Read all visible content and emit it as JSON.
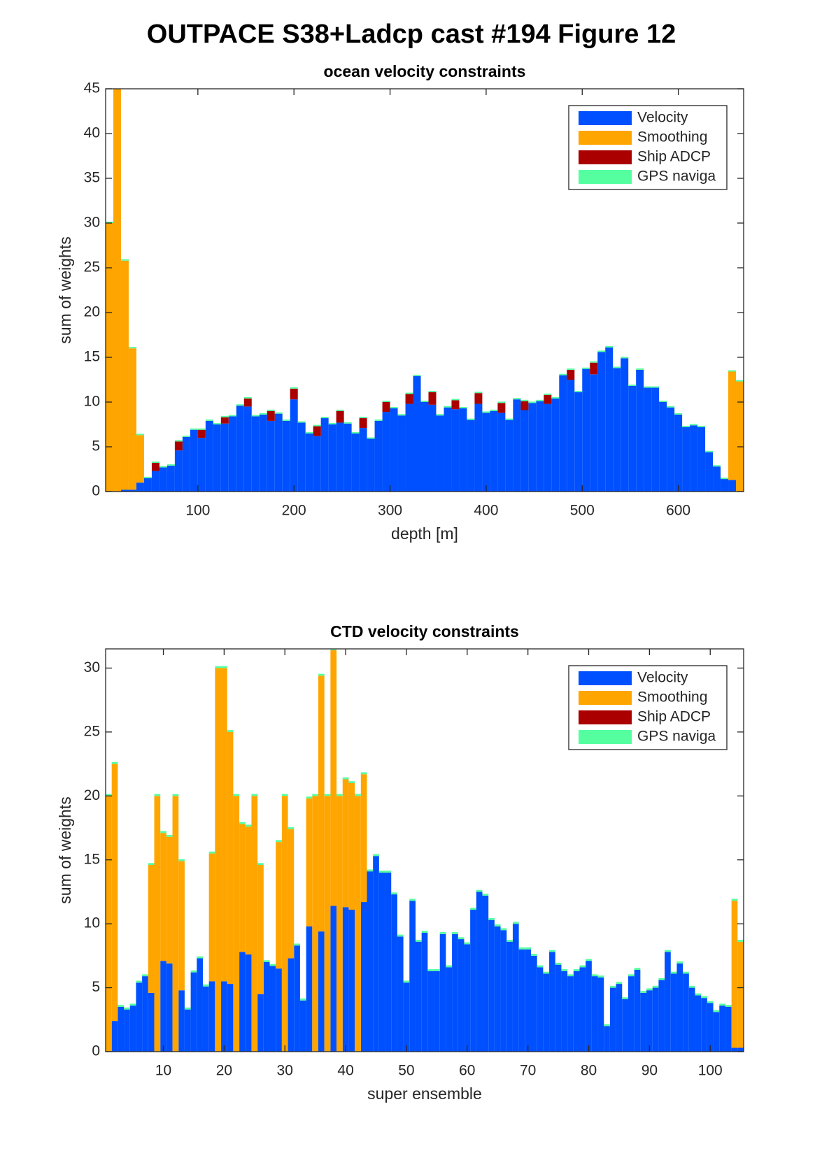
{
  "title": "OUTPACE S38+Ladcp cast #194  Figure 12",
  "chart_data": [
    {
      "type": "bar",
      "stacked": true,
      "title": "ocean velocity constraints",
      "xlabel": "depth [m]",
      "ylabel": "sum of weights",
      "x": [
        8,
        16,
        24,
        32,
        40,
        48,
        56,
        64,
        72,
        80,
        88,
        96,
        104,
        112,
        120,
        128,
        136,
        144,
        152,
        160,
        168,
        176,
        184,
        192,
        200,
        208,
        216,
        224,
        232,
        240,
        248,
        256,
        264,
        272,
        280,
        288,
        296,
        304,
        312,
        320,
        328,
        336,
        344,
        352,
        360,
        368,
        376,
        384,
        392,
        400,
        408,
        416,
        424,
        432,
        440,
        448,
        456,
        464,
        472,
        480,
        488,
        496,
        504,
        512,
        520,
        528,
        536,
        544,
        552,
        560,
        568,
        576,
        584,
        592,
        600,
        608,
        616,
        624,
        632,
        640,
        648,
        656,
        664
      ],
      "series": [
        {
          "name": "Velocity",
          "color": "#0050ff",
          "values": [
            0,
            0,
            0.2,
            0.2,
            1,
            1.5,
            2.3,
            2.7,
            2.9,
            4.6,
            6.1,
            6.9,
            6.0,
            7.9,
            7.5,
            7.6,
            8.4,
            9.6,
            9.5,
            8.4,
            8.6,
            7.9,
            8.7,
            7.9,
            10.3,
            7.7,
            6.5,
            6.2,
            8.2,
            7.5,
            7.7,
            7.6,
            6.5,
            7.1,
            5.9,
            7.9,
            8.9,
            9.3,
            8.5,
            9.8,
            12.9,
            10.0,
            9.7,
            8.5,
            9.4,
            9.2,
            9.3,
            8.0,
            9.8,
            8.8,
            9.0,
            8.8,
            8.0,
            10.3,
            9.1,
            9.9,
            10.1,
            9.8,
            10.4,
            13.0,
            12.5,
            11.1,
            13.7,
            13.1,
            15.6,
            16.1,
            13.8,
            14.9,
            11.8,
            13.6,
            11.6,
            11.6,
            10.0,
            9.4,
            8.6,
            7.2,
            7.4,
            7.2,
            4.4,
            2.8,
            1.4,
            1.3,
            0
          ]
        },
        {
          "name": "Smoothing",
          "color": "#ffa500",
          "values": [
            30,
            45,
            25.6,
            15.8,
            5.3,
            0,
            0,
            0,
            0,
            0,
            0,
            0,
            0,
            0,
            0,
            0,
            0,
            0,
            0,
            0,
            0,
            0,
            0,
            0,
            0,
            0,
            0,
            0,
            0,
            0,
            0,
            0,
            0,
            0,
            0,
            0,
            0,
            0,
            0,
            0,
            0,
            0,
            0,
            0,
            0,
            0,
            0,
            0,
            0,
            0,
            0,
            0,
            0,
            0,
            0,
            0,
            0,
            0,
            0,
            0,
            0,
            0,
            0,
            0,
            0,
            0,
            0,
            0,
            0,
            0,
            0,
            0,
            0,
            0,
            0,
            0,
            0,
            0,
            0,
            0,
            0,
            12.1,
            12.3
          ]
        },
        {
          "name": "Ship ADCP",
          "color": "#aa0000",
          "values": [
            0,
            0,
            0,
            0,
            0,
            0,
            0.9,
            0,
            0,
            1.0,
            0,
            0,
            0.9,
            0,
            0,
            0.7,
            0,
            0,
            0.9,
            0,
            0,
            1.1,
            0,
            0,
            1.2,
            0,
            0,
            1.1,
            0,
            0,
            1.3,
            0,
            0,
            1.1,
            0,
            0,
            1.1,
            0,
            0,
            1.1,
            0,
            0,
            1.4,
            0,
            0,
            1.0,
            0,
            0,
            1.2,
            0,
            0,
            1.1,
            0,
            0,
            1.0,
            0,
            0,
            1.0,
            0,
            0,
            1.1,
            0,
            0,
            1.3,
            0,
            0,
            0,
            0,
            0,
            0,
            0,
            0,
            0,
            0,
            0,
            0,
            0,
            0,
            0,
            0,
            0,
            0,
            0
          ]
        },
        {
          "name": "GPS naviga",
          "color": "#55ffa0",
          "values": [
            0.15,
            0.15,
            0.15,
            0.15,
            0.15,
            0.15,
            0.15,
            0.15,
            0.15,
            0.15,
            0.15,
            0.15,
            0.15,
            0.15,
            0.15,
            0.15,
            0.15,
            0.15,
            0.15,
            0.15,
            0.15,
            0.15,
            0.15,
            0.15,
            0.15,
            0.15,
            0.15,
            0.15,
            0.15,
            0.15,
            0.15,
            0.15,
            0.15,
            0.15,
            0.15,
            0.15,
            0.15,
            0.15,
            0.15,
            0.15,
            0.15,
            0.15,
            0.15,
            0.15,
            0.15,
            0.15,
            0.15,
            0.15,
            0.15,
            0.15,
            0.15,
            0.15,
            0.15,
            0.15,
            0.15,
            0.15,
            0.15,
            0.15,
            0.15,
            0.15,
            0.15,
            0.15,
            0.15,
            0.15,
            0.15,
            0.15,
            0.15,
            0.15,
            0.15,
            0.15,
            0.15,
            0.15,
            0.15,
            0.15,
            0.15,
            0.15,
            0.15,
            0.15,
            0.15,
            0.15,
            0.15,
            0.15,
            0.15
          ]
        }
      ],
      "xlim": [
        4,
        668
      ],
      "ylim": [
        0,
        45
      ],
      "xticks": [
        100,
        200,
        300,
        400,
        500,
        600
      ],
      "yticks": [
        0,
        5,
        10,
        15,
        20,
        25,
        30,
        35,
        40,
        45
      ],
      "legend": "upper right"
    },
    {
      "type": "bar",
      "stacked": true,
      "title": "CTD velocity constraints",
      "xlabel": "super ensemble",
      "ylabel": "sum of weights",
      "x": [
        1,
        2,
        3,
        4,
        5,
        6,
        7,
        8,
        9,
        10,
        11,
        12,
        13,
        14,
        15,
        16,
        17,
        18,
        19,
        20,
        21,
        22,
        23,
        24,
        25,
        26,
        27,
        28,
        29,
        30,
        31,
        32,
        33,
        34,
        35,
        36,
        37,
        38,
        39,
        40,
        41,
        42,
        43,
        44,
        45,
        46,
        47,
        48,
        49,
        50,
        51,
        52,
        53,
        54,
        55,
        56,
        57,
        58,
        59,
        60,
        61,
        62,
        63,
        64,
        65,
        66,
        67,
        68,
        69,
        70,
        71,
        72,
        73,
        74,
        75,
        76,
        77,
        78,
        79,
        80,
        81,
        82,
        83,
        84,
        85,
        86,
        87,
        88,
        89,
        90,
        91,
        92,
        93,
        94,
        95,
        96,
        97,
        98,
        99,
        100,
        101,
        102,
        103,
        104,
        105
      ],
      "series": [
        {
          "name": "Velocity",
          "color": "#0050ff",
          "values": [
            0,
            2.4,
            3.5,
            3.3,
            3.6,
            5.4,
            5.9,
            4.6,
            0,
            7.1,
            6.9,
            0,
            4.8,
            3.3,
            6.2,
            7.3,
            5.1,
            5.5,
            0,
            5.5,
            5.3,
            0,
            7.8,
            7.6,
            0,
            4.5,
            7.0,
            6.7,
            6.5,
            0,
            7.3,
            8.3,
            4.0,
            9.8,
            0,
            9.4,
            0,
            11.4,
            0,
            11.3,
            11.1,
            0,
            11.7,
            14.1,
            15.3,
            14.0,
            14.0,
            12.3,
            9.0,
            5.4,
            11.8,
            8.6,
            9.3,
            6.3,
            6.3,
            9.2,
            6.6,
            9.2,
            8.8,
            8.4,
            11.1,
            12.5,
            12.2,
            10.3,
            9.8,
            9.5,
            8.6,
            10.0,
            8.0,
            8.0,
            7.5,
            6.6,
            6.1,
            7.8,
            6.8,
            6.3,
            5.9,
            6.3,
            6.6,
            7.1,
            5.9,
            5.8,
            2.0,
            5.0,
            5.3,
            4.1,
            5.9,
            6.4,
            4.6,
            4.8,
            5.0,
            5.6,
            7.8,
            6.1,
            6.9,
            6.1,
            5.0,
            4.4,
            4.2,
            3.8,
            3.1,
            3.6,
            3.5,
            0.3,
            0.3
          ]
        },
        {
          "name": "Smoothing",
          "color": "#ffa500",
          "values": [
            20,
            20.1,
            0,
            0,
            0,
            0,
            0,
            10,
            20,
            10,
            9.9,
            20,
            10.1,
            0,
            0,
            0,
            0,
            10,
            30,
            24.5,
            19.7,
            20,
            10,
            10,
            20,
            10.1,
            0,
            0,
            9.9,
            20,
            10.1,
            0,
            0,
            10,
            20,
            20,
            20,
            20,
            20,
            10,
            9.9,
            20,
            10,
            0,
            0,
            0,
            0,
            0,
            0,
            0,
            0,
            0,
            0,
            0,
            0,
            0,
            0,
            0,
            0,
            0,
            0,
            0,
            0,
            0,
            0,
            0,
            0,
            0,
            0,
            0,
            0,
            0,
            0,
            0,
            0,
            0,
            0,
            0,
            0,
            0,
            0,
            0,
            0,
            0,
            0,
            0,
            0,
            0,
            0,
            0,
            0,
            0,
            0,
            0,
            0,
            0,
            0,
            0,
            0,
            0,
            0,
            0,
            0,
            11.5,
            8.3
          ]
        },
        {
          "name": "Ship ADCP",
          "color": "#aa0000",
          "values": [
            0,
            0,
            0,
            0,
            0,
            0,
            0,
            0,
            0,
            0,
            0,
            0,
            0,
            0,
            0,
            0,
            0,
            0,
            0,
            0,
            0,
            0,
            0,
            0,
            0,
            0,
            0,
            0,
            0,
            0,
            0,
            0,
            0,
            0,
            0,
            0,
            0,
            0,
            0,
            0,
            0,
            0,
            0,
            0,
            0,
            0,
            0,
            0,
            0,
            0,
            0,
            0,
            0,
            0,
            0,
            0,
            0,
            0,
            0,
            0,
            0,
            0,
            0,
            0,
            0,
            0,
            0,
            0,
            0,
            0,
            0,
            0,
            0,
            0,
            0,
            0,
            0,
            0,
            0,
            0,
            0,
            0,
            0,
            0,
            0,
            0,
            0,
            0,
            0,
            0,
            0,
            0,
            0,
            0,
            0,
            0,
            0,
            0,
            0,
            0,
            0,
            0,
            0,
            0,
            0
          ]
        },
        {
          "name": "GPS naviga",
          "color": "#55ffa0",
          "values": [
            0.15,
            0.15,
            0.15,
            0.15,
            0.15,
            0.15,
            0.15,
            0.15,
            0.15,
            0.15,
            0.15,
            0.15,
            0.15,
            0.15,
            0.15,
            0.15,
            0.15,
            0.15,
            0.15,
            0.15,
            0.15,
            0.15,
            0.15,
            0.15,
            0.15,
            0.15,
            0.15,
            0.15,
            0.15,
            0.15,
            0.15,
            0.15,
            0.15,
            0.15,
            0.15,
            0.15,
            0.15,
            0.15,
            0.15,
            0.15,
            0.15,
            0.15,
            0.15,
            0.15,
            0.15,
            0.15,
            0.15,
            0.15,
            0.15,
            0.15,
            0.15,
            0.15,
            0.15,
            0.15,
            0.15,
            0.15,
            0.15,
            0.15,
            0.15,
            0.15,
            0.15,
            0.15,
            0.15,
            0.15,
            0.15,
            0.15,
            0.15,
            0.15,
            0.15,
            0.15,
            0.15,
            0.15,
            0.15,
            0.15,
            0.15,
            0.15,
            0.15,
            0.15,
            0.15,
            0.15,
            0.15,
            0.15,
            0.15,
            0.15,
            0.15,
            0.15,
            0.15,
            0.15,
            0.15,
            0.15,
            0.15,
            0.15,
            0.15,
            0.15,
            0.15,
            0.15,
            0.15,
            0.15,
            0.15,
            0.15,
            0.15,
            0.15,
            0.15,
            0.15,
            0.15
          ]
        }
      ],
      "xlim": [
        0.5,
        105.5
      ],
      "ylim": [
        0,
        31.5
      ],
      "xticks": [
        10,
        20,
        30,
        40,
        50,
        60,
        70,
        80,
        90,
        100
      ],
      "yticks": [
        0,
        5,
        10,
        15,
        20,
        25,
        30
      ],
      "legend": "upper right"
    }
  ]
}
